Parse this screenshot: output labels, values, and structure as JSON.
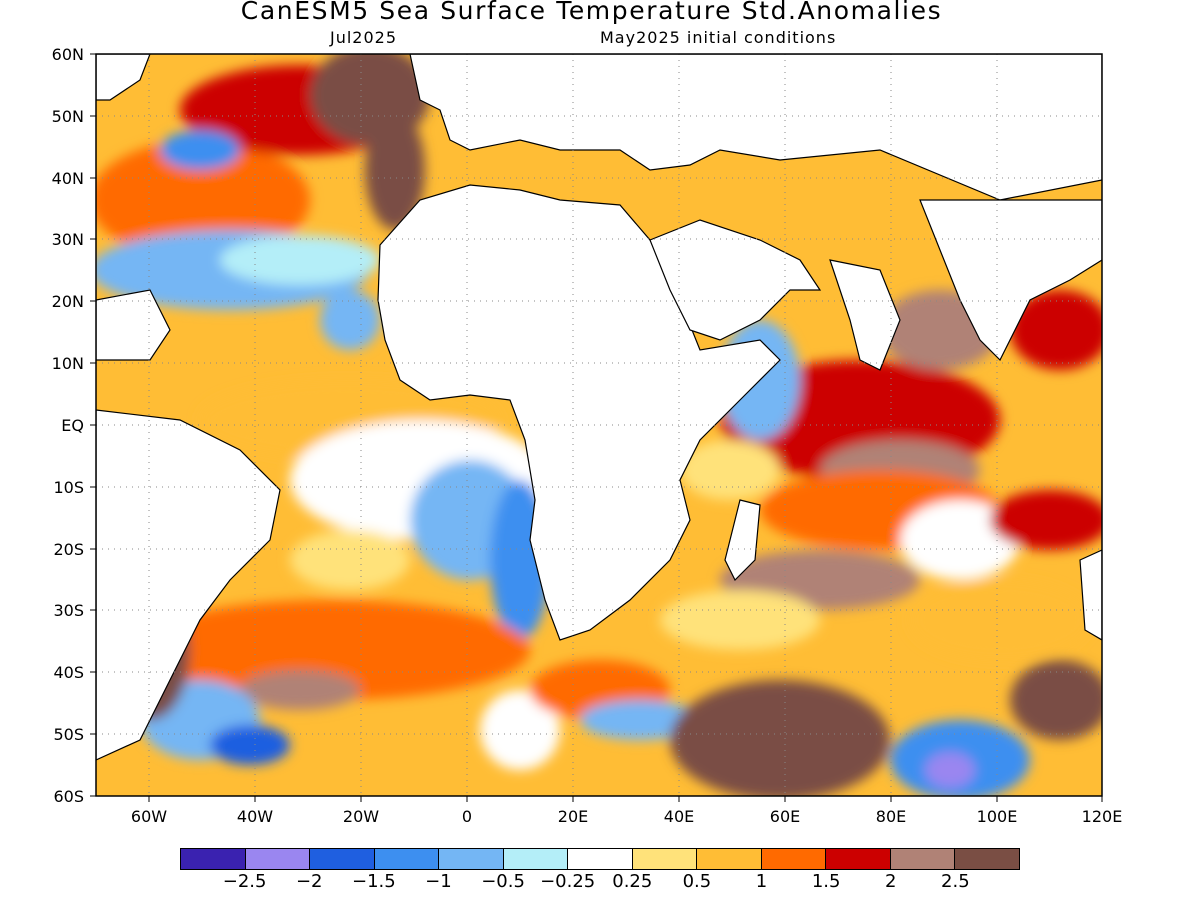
{
  "header": {
    "title": "CanESM5 Sea Surface Temperature Std.Anomalies",
    "valid_month": "Jul2025",
    "init_note": "May2025 initial conditions"
  },
  "map": {
    "lat_labels": [
      "60N",
      "50N",
      "40N",
      "30N",
      "20N",
      "10N",
      "EQ",
      "10S",
      "20S",
      "30S",
      "40S",
      "50S",
      "60S"
    ],
    "lon_labels": [
      "60W",
      "40W",
      "20W",
      "0",
      "20E",
      "40E",
      "60E",
      "80E",
      "100E",
      "120E"
    ],
    "lat_range": [
      -60,
      60
    ],
    "lon_range": [
      -70,
      120
    ],
    "grid": "dotted",
    "coastlines": true
  },
  "colorbar": {
    "colors": [
      "#3a22b0",
      "#9a86f0",
      "#1f5fe0",
      "#3d8ff0",
      "#74b6f4",
      "#b4eef8",
      "#ffffff",
      "#ffe27a",
      "#ffbd35",
      "#ff6a00",
      "#cc0000",
      "#b08276",
      "#7a4e44"
    ],
    "labels": [
      "−2.5",
      "−2",
      "−1.5",
      "−1",
      "−0.5",
      "−0.25",
      "0.25",
      "0.5",
      "1",
      "1.5",
      "2",
      "2.5"
    ]
  }
}
